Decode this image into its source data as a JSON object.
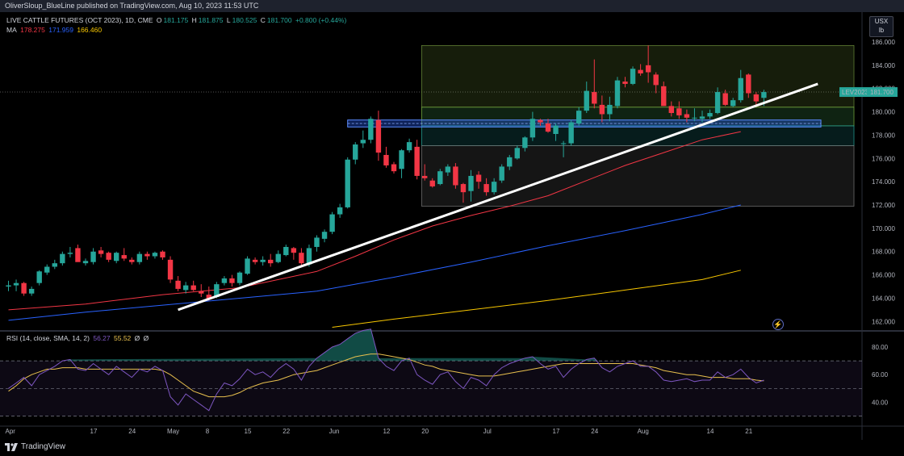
{
  "header": {
    "publisher": "OliverSloup_BlueLine published on TradingView.com, Aug 10, 2023 11:53 UTC"
  },
  "legend": {
    "symbol": "LIVE CATTLE FUTURES (OCT 2023), 1D, CME",
    "o_label": "O",
    "o": "181.175",
    "h_label": "H",
    "h": "181.875",
    "l_label": "L",
    "l": "180.525",
    "c_label": "C",
    "c": "181.700",
    "change": "+0.800 (+0.44%)",
    "ma_label": "MA",
    "ma1": "178.275",
    "ma2": "171.959",
    "ma3": "166.460"
  },
  "currency": {
    "line1": "USX",
    "line2": "lb"
  },
  "price_tag": {
    "ticker": "LEV2023",
    "value": "181.700"
  },
  "rsi_legend": {
    "label": "RSI (14, close, SMA, 14, 2)",
    "rsi": "56.27",
    "sma": "55.52",
    "empty1": "Ø",
    "empty2": "Ø"
  },
  "brand": {
    "name": "TradingView"
  },
  "colors": {
    "up": "#26a69a",
    "down": "#f23645",
    "ma_short": "#f23645",
    "ma_mid": "#2962ff",
    "ma_long": "#f7c600",
    "rsi": "#7e57c2",
    "rsi_ma": "#e8c04e"
  },
  "chart_data": {
    "type": "candlestick",
    "y_ticks": [
      "186.000",
      "184.000",
      "182.000",
      "180.000",
      "178.000",
      "176.000",
      "174.000",
      "172.000",
      "170.000",
      "168.000",
      "166.000",
      "164.000",
      "162.000"
    ],
    "ylim": [
      161.5,
      186.5
    ],
    "x_ticks": [
      {
        "i": 0,
        "label": "Apr"
      },
      {
        "i": 11,
        "label": "17"
      },
      {
        "i": 16,
        "label": "24"
      },
      {
        "i": 21,
        "label": "May"
      },
      {
        "i": 26,
        "label": "8"
      },
      {
        "i": 31,
        "label": "15"
      },
      {
        "i": 36,
        "label": "22"
      },
      {
        "i": 42,
        "label": "Jun"
      },
      {
        "i": 49,
        "label": "12"
      },
      {
        "i": 54,
        "label": "20"
      },
      {
        "i": 62,
        "label": "Jul"
      },
      {
        "i": 71,
        "label": "17"
      },
      {
        "i": 76,
        "label": "24"
      },
      {
        "i": 82,
        "label": "Aug"
      },
      {
        "i": 91,
        "label": "14"
      },
      {
        "i": 96,
        "label": "21"
      }
    ],
    "candles": [
      [
        165,
        165.5,
        164.6,
        165.1
      ],
      [
        165.1,
        165.6,
        164.6,
        165.3
      ],
      [
        165.3,
        165.4,
        164.2,
        164.4
      ],
      [
        164.4,
        165,
        164.2,
        164.8
      ],
      [
        165.3,
        166.4,
        165.1,
        166.3
      ],
      [
        166.2,
        166.9,
        166,
        166.7
      ],
      [
        166.7,
        167.3,
        166.5,
        167
      ],
      [
        167,
        168,
        166.8,
        167.8
      ],
      [
        167.8,
        168.4,
        167.5,
        167.9
      ],
      [
        168.3,
        168.6,
        167.2,
        167.1
      ],
      [
        167,
        167.4,
        166.8,
        167.2
      ],
      [
        167.1,
        168.3,
        166.9,
        168
      ],
      [
        168.1,
        168.4,
        167.5,
        167.8
      ],
      [
        167.9,
        168,
        167.1,
        167.3
      ],
      [
        167.2,
        168,
        167,
        167.9
      ],
      [
        167.7,
        168.3,
        167.2,
        167.4
      ],
      [
        167.3,
        167.5,
        166.9,
        167.1
      ],
      [
        167.1,
        168,
        166.9,
        167.8
      ],
      [
        167.8,
        168,
        167.3,
        167.6
      ],
      [
        167.6,
        168,
        167.4,
        167.9
      ],
      [
        168,
        168.1,
        167.3,
        167.5
      ],
      [
        167.3,
        167.6,
        165.3,
        165.6
      ],
      [
        165.5,
        165.9,
        164.6,
        164.8
      ],
      [
        164.7,
        165.4,
        164.4,
        165.1
      ],
      [
        165.1,
        165.5,
        164.6,
        164.7
      ],
      [
        164.6,
        165.2,
        164.1,
        164.4
      ],
      [
        164.3,
        165,
        163.8,
        163.9
      ],
      [
        164.1,
        165.4,
        164,
        165.2
      ],
      [
        165.3,
        165.9,
        165.1,
        165.7
      ],
      [
        165.7,
        166,
        165,
        165.3
      ],
      [
        165.3,
        166.3,
        165.1,
        166.2
      ],
      [
        166.1,
        167.6,
        166,
        167.4
      ],
      [
        167.3,
        167.5,
        166.9,
        167.1
      ],
      [
        167.1,
        167.6,
        166.8,
        167.3
      ],
      [
        167.3,
        167.8,
        166.7,
        167
      ],
      [
        167.1,
        168.1,
        167,
        167.8
      ],
      [
        167.7,
        168.6,
        167.6,
        168.4
      ],
      [
        168.3,
        168.4,
        167.3,
        167.9
      ],
      [
        167.9,
        168.3,
        166.8,
        167
      ],
      [
        166.9,
        168.6,
        166.7,
        168.3
      ],
      [
        168.4,
        169.4,
        168,
        169.2
      ],
      [
        169.1,
        169.9,
        168.8,
        169.7
      ],
      [
        169.7,
        171.4,
        169.5,
        171.2
      ],
      [
        171.2,
        172.1,
        170.9,
        171.8
      ],
      [
        171.8,
        176.1,
        171.7,
        175.9
      ],
      [
        175.9,
        177.4,
        175.5,
        177.2
      ],
      [
        177.3,
        178.4,
        176.9,
        177.6
      ],
      [
        177.6,
        179.6,
        177.3,
        179.4
      ],
      [
        179.3,
        180.1,
        175.8,
        176.5
      ],
      [
        176.3,
        177,
        175.2,
        175.4
      ],
      [
        175.5,
        175.7,
        174.7,
        174.9
      ],
      [
        175.1,
        176.8,
        174.3,
        176.7
      ],
      [
        176.7,
        177.7,
        176.5,
        177.4
      ],
      [
        177,
        177.6,
        174.2,
        174.5
      ],
      [
        174.5,
        175.5,
        174.1,
        174.3
      ],
      [
        174.1,
        174.3,
        173.5,
        173.6
      ],
      [
        173.8,
        175.1,
        173.7,
        174.9
      ],
      [
        174.8,
        175.5,
        174.5,
        175.3
      ],
      [
        175.3,
        175.6,
        173.4,
        173.7
      ],
      [
        173.8,
        173.9,
        172.2,
        173.1
      ],
      [
        173.2,
        175,
        172.3,
        174.5
      ],
      [
        174.6,
        174.9,
        173.4,
        174
      ],
      [
        173.8,
        174.3,
        172.8,
        173.1
      ],
      [
        173.1,
        174.3,
        172.9,
        174
      ],
      [
        174.1,
        175.5,
        173.9,
        175.3
      ],
      [
        175.3,
        176.3,
        175,
        176.1
      ],
      [
        176,
        177.1,
        175.9,
        176.9
      ],
      [
        176.9,
        177.9,
        176.6,
        177.8
      ],
      [
        177.8,
        180,
        177.5,
        179.4
      ],
      [
        179.3,
        179.4,
        178.8,
        179.1
      ],
      [
        179,
        179.4,
        178.2,
        178.3
      ],
      [
        178.1,
        179,
        177.5,
        178.8
      ],
      [
        177.3,
        177.5,
        176.1,
        177.3
      ],
      [
        177.3,
        179.3,
        177.1,
        179.1
      ],
      [
        179,
        180.4,
        178.8,
        180.1
      ],
      [
        180.1,
        182.6,
        179.9,
        181.8
      ],
      [
        181.7,
        184.5,
        180.3,
        180.7
      ],
      [
        180.6,
        181.4,
        179.1,
        179.8
      ],
      [
        179.8,
        181.3,
        179.2,
        180.6
      ],
      [
        180.5,
        183,
        180.3,
        182.7
      ],
      [
        182.6,
        183,
        182.1,
        182.4
      ],
      [
        182.4,
        183.9,
        182.3,
        183.7
      ],
      [
        183.6,
        184.1,
        183.1,
        183.3
      ],
      [
        184,
        185.7,
        182.5,
        183.4
      ],
      [
        183.2,
        183.4,
        181.6,
        182.3
      ],
      [
        182.2,
        182.6,
        180.5,
        180.5
      ],
      [
        180.5,
        180.9,
        179.6,
        179.9
      ],
      [
        180.3,
        180.9,
        179.4,
        179.7
      ],
      [
        179.8,
        180.2,
        179.1,
        179.5
      ],
      [
        179.5,
        180.3,
        179.2,
        179.5
      ],
      [
        179.4,
        180.1,
        179.1,
        179.6
      ],
      [
        179.6,
        180.2,
        179.4,
        179.9
      ],
      [
        179.9,
        182.1,
        179.8,
        181.7
      ],
      [
        181.6,
        181.9,
        180.5,
        180.6
      ],
      [
        180.5,
        181.2,
        180.4,
        181
      ],
      [
        181,
        183.6,
        180.8,
        182.9
      ],
      [
        183.2,
        183.3,
        181.2,
        181.6
      ],
      [
        181.5,
        181.7,
        180.6,
        180.9
      ],
      [
        181.2,
        181.9,
        180.5,
        181.7
      ]
    ],
    "ma_series": [
      {
        "name": "MA 178.275",
        "color": "#f23645",
        "x": [
          0,
          10,
          20,
          30,
          40,
          45,
          50,
          55,
          60,
          65,
          70,
          75,
          80,
          85,
          90,
          95
        ],
        "y": [
          163,
          163.5,
          164.3,
          164.9,
          166.3,
          167.6,
          169,
          170.2,
          171.1,
          171.9,
          172.8,
          174.1,
          175.4,
          176.5,
          177.6,
          178.3
        ]
      },
      {
        "name": "MA 171.959",
        "color": "#2962ff",
        "x": [
          0,
          10,
          20,
          30,
          40,
          50,
          60,
          70,
          80,
          85,
          90,
          95
        ],
        "y": [
          162.1,
          162.8,
          163.4,
          164,
          164.6,
          165.8,
          167.1,
          168.5,
          169.8,
          170.5,
          171.2,
          172
        ]
      },
      {
        "name": "MA 166.460",
        "color": "#f7c600",
        "x": [
          42,
          50,
          60,
          70,
          80,
          90,
          95
        ],
        "y": [
          161.5,
          162.2,
          163,
          163.8,
          164.7,
          165.6,
          166.4
        ]
      }
    ],
    "trendline": {
      "x": [
        22,
        105
      ],
      "y": [
        163,
        182.4
      ]
    },
    "rsi": {
      "ylim": [
        25,
        90
      ],
      "ticks": [
        "80.00",
        "60.00",
        "40.00"
      ],
      "bands": [
        70,
        50,
        30
      ],
      "rsi_values": [
        50,
        54,
        58,
        52,
        60,
        63,
        66,
        70,
        71,
        64,
        63,
        68,
        64,
        60,
        66,
        62,
        58,
        64,
        62,
        66,
        63,
        44,
        38,
        46,
        42,
        38,
        34,
        46,
        54,
        52,
        57,
        64,
        60,
        62,
        58,
        64,
        68,
        64,
        56,
        66,
        72,
        76,
        80,
        82,
        86,
        90,
        92,
        93,
        72,
        66,
        63,
        70,
        72,
        60,
        56,
        53,
        60,
        62,
        55,
        50,
        58,
        56,
        52,
        60,
        65,
        68,
        70,
        72,
        73,
        68,
        64,
        66,
        58,
        64,
        68,
        71,
        72,
        65,
        62,
        66,
        68,
        70,
        66,
        66,
        62,
        56,
        55,
        56,
        57,
        55,
        56,
        56,
        62,
        58,
        60,
        64,
        58,
        54,
        56
      ],
      "sma_values": [
        48,
        52,
        57,
        60,
        62,
        64,
        64,
        65,
        65,
        65,
        64,
        64,
        64,
        64,
        64,
        64,
        64,
        64,
        64,
        64,
        63,
        60,
        56,
        52,
        48,
        46,
        44,
        44,
        44,
        45,
        47,
        50,
        52,
        54,
        55,
        56,
        58,
        60,
        61,
        62,
        63,
        65,
        67,
        69,
        71,
        73,
        74,
        75,
        75,
        74,
        73,
        72,
        71,
        69,
        67,
        66,
        64,
        63,
        62,
        61,
        60,
        59,
        59,
        59,
        60,
        61,
        62,
        63,
        64,
        65,
        66,
        67,
        68,
        68,
        68,
        68,
        68,
        68,
        68,
        68,
        68,
        68,
        67,
        66,
        65,
        63,
        62,
        61,
        60,
        60,
        59,
        58,
        58,
        58,
        57,
        57,
        57,
        56,
        55.5
      ]
    }
  }
}
